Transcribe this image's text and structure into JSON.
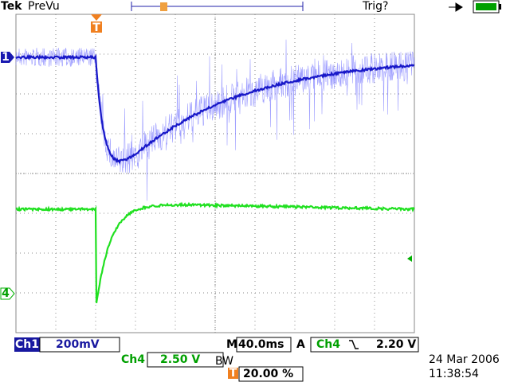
{
  "header": {
    "brand": "Tek",
    "mode": "PreVu",
    "trigger_status": "Trig?"
  },
  "markers": {
    "trigger_position": "T",
    "ch1": "1",
    "ch4": "4"
  },
  "readout": {
    "ch1_label": "Ch1",
    "ch1_scale": "200mV",
    "timebase_prefix": "M",
    "timebase": "40.0ms",
    "acquire": "A",
    "trigger_source": "Ch4",
    "trigger_level": "2.20 V",
    "ch4_label": "Ch4",
    "ch4_scale": "2.50 V",
    "bandwidth": "BW",
    "trigger_icon": "T",
    "trigger_offset": "20.00 %"
  },
  "datetime": {
    "date": "24 Mar 2006",
    "time": "11:38:54"
  }
}
